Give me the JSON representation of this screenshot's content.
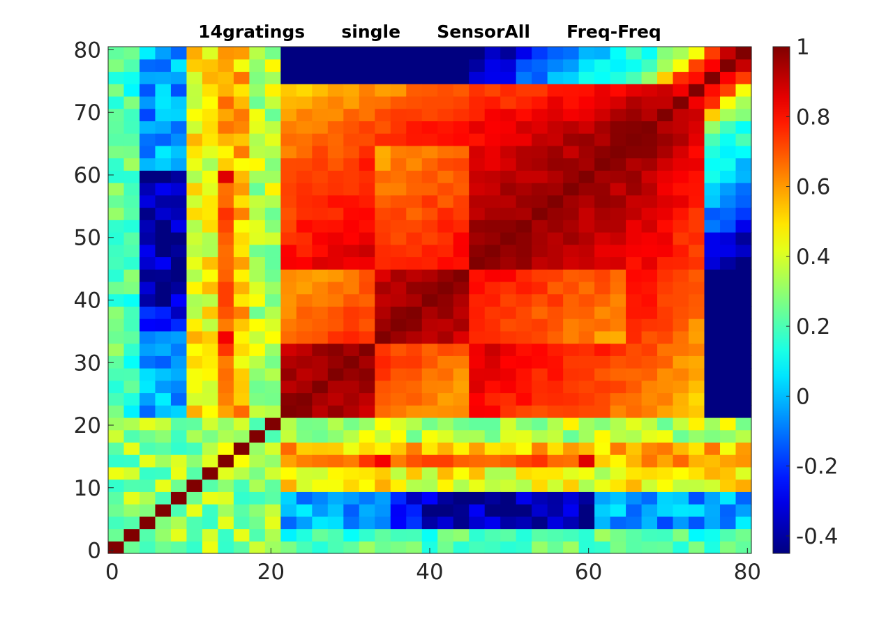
{
  "chart_data": {
    "type": "heatmap",
    "title": "14gratings      single      SensorAll      Freq-Freq",
    "xlabel": "",
    "ylabel": "",
    "xlim": [
      0,
      81
    ],
    "ylim": [
      0,
      81
    ],
    "x_ticks": [
      {
        "value": 0,
        "label": "0"
      },
      {
        "value": 20,
        "label": "20"
      },
      {
        "value": 40,
        "label": "40"
      },
      {
        "value": 60,
        "label": "60"
      },
      {
        "value": 80,
        "label": "80"
      }
    ],
    "y_ticks": [
      {
        "value": 0,
        "label": "0"
      },
      {
        "value": 10,
        "label": "10"
      },
      {
        "value": 20,
        "label": "20"
      },
      {
        "value": 30,
        "label": "30"
      },
      {
        "value": 40,
        "label": "40"
      },
      {
        "value": 50,
        "label": "50"
      },
      {
        "value": 60,
        "label": "60"
      },
      {
        "value": 70,
        "label": "70"
      },
      {
        "value": 80,
        "label": "80"
      }
    ],
    "colormap": "jet",
    "colorbar": {
      "min": -0.45,
      "max": 1.0,
      "ticks": [
        {
          "value": 1,
          "label": "1"
        },
        {
          "value": 0.8,
          "label": "0.8"
        },
        {
          "value": 0.6,
          "label": "0.6"
        },
        {
          "value": 0.4,
          "label": "0.4"
        },
        {
          "value": 0.2,
          "label": "0.2"
        },
        {
          "value": 0,
          "label": "0"
        },
        {
          "value": -0.2,
          "label": "-0.2"
        },
        {
          "value": -0.4,
          "label": "-0.4"
        }
      ]
    },
    "grid": 41,
    "cell_step": 2,
    "approximate_matrix_description": "Correlation matrix of 41 x 41 bins (index 0 to 80, step 2). Diagonal = 1. Block of high correlation (0.8-1) for indices ~22-78; indices 0-20 show low/negative correlation with indices 24-80, most negative (~-0.4) around rows 4-8 for columns 34-60."
  }
}
